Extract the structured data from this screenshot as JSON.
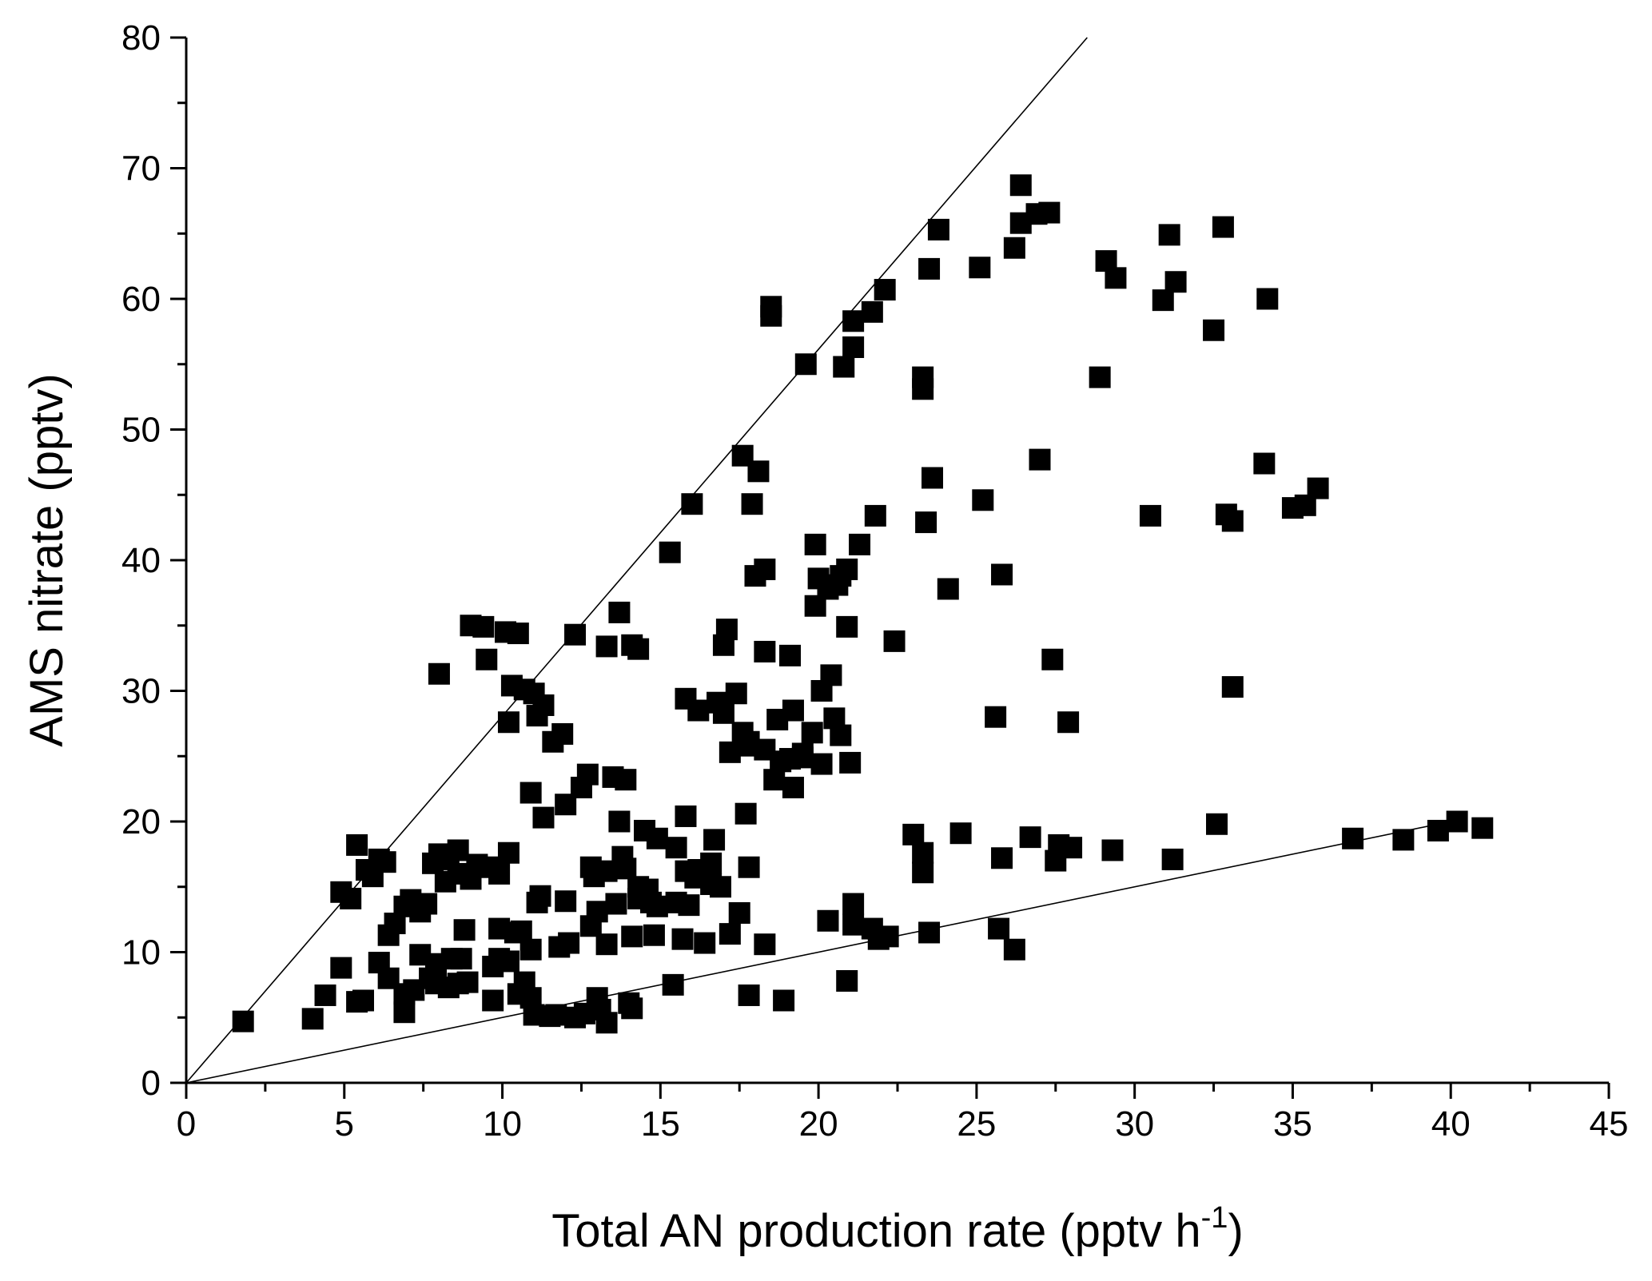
{
  "chart_data": {
    "type": "scatter",
    "title": "",
    "xlabel": "Total AN production rate (pptv h",
    "xlabel_sup": "-1",
    "xlabel_tail": ")",
    "ylabel": "AMS nitrate (pptv)",
    "xlim": [
      0,
      45
    ],
    "ylim": [
      0,
      80
    ],
    "xticks": [
      "0",
      "5",
      "10",
      "15",
      "20",
      "25",
      "30",
      "35",
      "40",
      "45"
    ],
    "yticks": [
      "0",
      "10",
      "20",
      "30",
      "40",
      "50",
      "60",
      "70",
      "80"
    ],
    "grid": false,
    "legend": "none",
    "reference_lines": [
      {
        "x": [
          0,
          28.5
        ],
        "y": [
          0,
          80
        ]
      },
      {
        "x": [
          0,
          40.2
        ],
        "y": [
          0,
          20.1
        ]
      }
    ],
    "points": [
      [
        1.8,
        4.7
      ],
      [
        4,
        4.9
      ],
      [
        4.4,
        6.7
      ],
      [
        5.4,
        6.2
      ],
      [
        5.6,
        6.3
      ],
      [
        4.9,
        8.8
      ],
      [
        4.9,
        14.6
      ],
      [
        5.2,
        14.1
      ],
      [
        5.4,
        18.2
      ],
      [
        5.7,
        16.3
      ],
      [
        5.9,
        15.8
      ],
      [
        6.1,
        17.1
      ],
      [
        6.3,
        16.9
      ],
      [
        6.1,
        9.2
      ],
      [
        6.4,
        8
      ],
      [
        6.4,
        11.3
      ],
      [
        6.6,
        12.2
      ],
      [
        6.9,
        5.4
      ],
      [
        6.9,
        6.8
      ],
      [
        7.2,
        7.1
      ],
      [
        6.9,
        13.5
      ],
      [
        7.1,
        14
      ],
      [
        7.4,
        13.1
      ],
      [
        7.6,
        13.7
      ],
      [
        7.4,
        9.8
      ],
      [
        7.9,
        9.1
      ],
      [
        7.7,
        8
      ],
      [
        7.9,
        7.6
      ],
      [
        7.8,
        16.8
      ],
      [
        8,
        17.5
      ],
      [
        8,
        31.3
      ],
      [
        8.2,
        15.4
      ],
      [
        8.3,
        17.1
      ],
      [
        8.4,
        9.5
      ],
      [
        8.6,
        17.8
      ],
      [
        8.6,
        16
      ],
      [
        8.3,
        7.3
      ],
      [
        8.6,
        7.6
      ],
      [
        8.9,
        7.7
      ],
      [
        8.7,
        9.5
      ],
      [
        8.8,
        11.7
      ],
      [
        9,
        15.6
      ],
      [
        9.2,
        16.7
      ],
      [
        9,
        35
      ],
      [
        9.4,
        34.9
      ],
      [
        9.5,
        32.4
      ],
      [
        9.7,
        6.3
      ],
      [
        9.7,
        8.9
      ],
      [
        9.6,
        16.5
      ],
      [
        9.9,
        16
      ],
      [
        9.9,
        9.5
      ],
      [
        9.9,
        11.8
      ],
      [
        10.2,
        9.3
      ],
      [
        10.4,
        11.5
      ],
      [
        10.2,
        17.6
      ],
      [
        10.2,
        27.6
      ],
      [
        10.3,
        30.4
      ],
      [
        10.1,
        34.5
      ],
      [
        10.5,
        34.4
      ],
      [
        10.7,
        30.1
      ],
      [
        10.5,
        6.8
      ],
      [
        10.7,
        7.7
      ],
      [
        10.6,
        11.6
      ],
      [
        10.9,
        6.5
      ],
      [
        10.9,
        10.2
      ],
      [
        10.9,
        22.2
      ],
      [
        11.1,
        28.1
      ],
      [
        11,
        29.8
      ],
      [
        11.3,
        28.9
      ],
      [
        11.1,
        13.8
      ],
      [
        11.2,
        14.3
      ],
      [
        11.3,
        20.3
      ],
      [
        11,
        5.2
      ],
      [
        11.5,
        5.1
      ],
      [
        11.7,
        5.2
      ],
      [
        11.6,
        26.1
      ],
      [
        11.9,
        26.7
      ],
      [
        11.8,
        10.4
      ],
      [
        12.1,
        10.7
      ],
      [
        12,
        13.9
      ],
      [
        12,
        21.3
      ],
      [
        12.3,
        5
      ],
      [
        12.6,
        5.3
      ],
      [
        12.3,
        34.3
      ],
      [
        12.5,
        22.6
      ],
      [
        12.7,
        23.6
      ],
      [
        12.8,
        16.5
      ],
      [
        12.9,
        15.8
      ],
      [
        12.8,
        12
      ],
      [
        13,
        13.1
      ],
      [
        13,
        6.5
      ],
      [
        13.1,
        5.6
      ],
      [
        13.3,
        4.6
      ],
      [
        13.3,
        10.6
      ],
      [
        13.3,
        16.2
      ],
      [
        13.3,
        33.4
      ],
      [
        13.5,
        23.4
      ],
      [
        13.6,
        13.7
      ],
      [
        13.8,
        17.3
      ],
      [
        13.7,
        20
      ],
      [
        13.7,
        36
      ],
      [
        13.9,
        23.2
      ],
      [
        13.9,
        16.4
      ],
      [
        14,
        6.1
      ],
      [
        14.1,
        5.7
      ],
      [
        14.1,
        33.5
      ],
      [
        14.3,
        33.2
      ],
      [
        14.1,
        11.2
      ],
      [
        14.3,
        15
      ],
      [
        14.6,
        14.8
      ],
      [
        14.3,
        14.1
      ],
      [
        14.5,
        19.3
      ],
      [
        14.9,
        18.7
      ],
      [
        14.8,
        11.3
      ],
      [
        14.7,
        13.8
      ],
      [
        14.9,
        13.5
      ],
      [
        15.3,
        40.6
      ],
      [
        15.4,
        7.5
      ],
      [
        15.5,
        13.8
      ],
      [
        15.5,
        18
      ],
      [
        15.8,
        16.2
      ],
      [
        15.7,
        11
      ],
      [
        15.9,
        13.6
      ],
      [
        15.8,
        20.4
      ],
      [
        15.8,
        29.4
      ],
      [
        16.1,
        15.7
      ],
      [
        16.2,
        16.3
      ],
      [
        16,
        44.3
      ],
      [
        16.2,
        28.5
      ],
      [
        16.4,
        10.7
      ],
      [
        16.6,
        16.8
      ],
      [
        16.6,
        15.2
      ],
      [
        16.7,
        18.6
      ],
      [
        16.8,
        29.1
      ],
      [
        16.9,
        15
      ],
      [
        17,
        28.3
      ],
      [
        17,
        33.5
      ],
      [
        17.1,
        34.7
      ],
      [
        17.2,
        11.4
      ],
      [
        17.2,
        25.3
      ],
      [
        17.4,
        29.8
      ],
      [
        17.5,
        13
      ],
      [
        17.6,
        26.8
      ],
      [
        17.6,
        48
      ],
      [
        17.8,
        26.1
      ],
      [
        17.7,
        20.6
      ],
      [
        17.7,
        25.8
      ],
      [
        17.8,
        16.5
      ],
      [
        17.9,
        44.3
      ],
      [
        17.8,
        6.7
      ],
      [
        18.1,
        46.8
      ],
      [
        18,
        38.8
      ],
      [
        18.3,
        39.3
      ],
      [
        18.3,
        33
      ],
      [
        18.3,
        25.5
      ],
      [
        18.3,
        10.6
      ],
      [
        18.5,
        59.4
      ],
      [
        18.5,
        58.7
      ],
      [
        18.6,
        23.2
      ],
      [
        18.8,
        24.6
      ],
      [
        18.7,
        27.8
      ],
      [
        18.9,
        6.3
      ],
      [
        19.1,
        24.8
      ],
      [
        19.1,
        32.7
      ],
      [
        19.2,
        28.5
      ],
      [
        19.2,
        22.6
      ],
      [
        19.5,
        25.2
      ],
      [
        19.5,
        24.9
      ],
      [
        19.6,
        55
      ],
      [
        19.8,
        26.8
      ],
      [
        19.9,
        36.5
      ],
      [
        19.9,
        41.2
      ],
      [
        20,
        38.6
      ],
      [
        20.1,
        30
      ],
      [
        20.1,
        24.4
      ],
      [
        20.3,
        12.4
      ],
      [
        20.4,
        31.2
      ],
      [
        20.3,
        37.8
      ],
      [
        20.6,
        38.1
      ],
      [
        20.5,
        27.9
      ],
      [
        20.7,
        38.8
      ],
      [
        20.7,
        26.6
      ],
      [
        20.9,
        39.3
      ],
      [
        20.8,
        54.8
      ],
      [
        20.9,
        34.9
      ],
      [
        20.9,
        7.8
      ],
      [
        21,
        24.5
      ],
      [
        21.1,
        56.3
      ],
      [
        21.1,
        58.3
      ],
      [
        21.1,
        13.7
      ],
      [
        21.1,
        12.1
      ],
      [
        21.3,
        41.2
      ],
      [
        21.7,
        59
      ],
      [
        21.7,
        11.8
      ],
      [
        21.8,
        43.4
      ],
      [
        21.9,
        11
      ],
      [
        22.1,
        60.7
      ],
      [
        22.2,
        11.2
      ],
      [
        22.4,
        33.8
      ],
      [
        23,
        19
      ],
      [
        23.3,
        16.1
      ],
      [
        23.3,
        54
      ],
      [
        23.3,
        17.6
      ],
      [
        23.3,
        53.1
      ],
      [
        23.4,
        42.9
      ],
      [
        23.5,
        11.5
      ],
      [
        23.5,
        62.3
      ],
      [
        23.6,
        46.3
      ],
      [
        23.8,
        65.3
      ],
      [
        24.1,
        37.8
      ],
      [
        24.5,
        19.1
      ],
      [
        25.1,
        62.4
      ],
      [
        25.2,
        44.6
      ],
      [
        25.6,
        28
      ],
      [
        25.7,
        11.8
      ],
      [
        25.8,
        17.2
      ],
      [
        25.8,
        38.9
      ],
      [
        26.2,
        10.2
      ],
      [
        26.2,
        63.9
      ],
      [
        26.4,
        65.8
      ],
      [
        26.4,
        68.7
      ],
      [
        26.7,
        18.8
      ],
      [
        26.9,
        66.5
      ],
      [
        27,
        47.7
      ],
      [
        27.3,
        66.6
      ],
      [
        27.4,
        32.4
      ],
      [
        27.5,
        17
      ],
      [
        27.6,
        18.2
      ],
      [
        27.9,
        27.6
      ],
      [
        28,
        18
      ],
      [
        28.9,
        54
      ],
      [
        29.1,
        62.9
      ],
      [
        29.3,
        17.8
      ],
      [
        29.4,
        61.6
      ],
      [
        30.5,
        43.4
      ],
      [
        30.9,
        59.9
      ],
      [
        31.1,
        64.9
      ],
      [
        31.2,
        17.1
      ],
      [
        31.3,
        61.3
      ],
      [
        32.5,
        57.6
      ],
      [
        32.6,
        19.8
      ],
      [
        32.8,
        65.5
      ],
      [
        32.9,
        43.5
      ],
      [
        33.1,
        30.3
      ],
      [
        33.1,
        43
      ],
      [
        34.1,
        47.4
      ],
      [
        34.2,
        60
      ],
      [
        35,
        44
      ],
      [
        35.4,
        44.2
      ],
      [
        35.8,
        45.5
      ],
      [
        36.9,
        18.7
      ],
      [
        38.5,
        18.6
      ],
      [
        39.6,
        19.3
      ],
      [
        40.2,
        20
      ],
      [
        41,
        19.5
      ]
    ]
  }
}
